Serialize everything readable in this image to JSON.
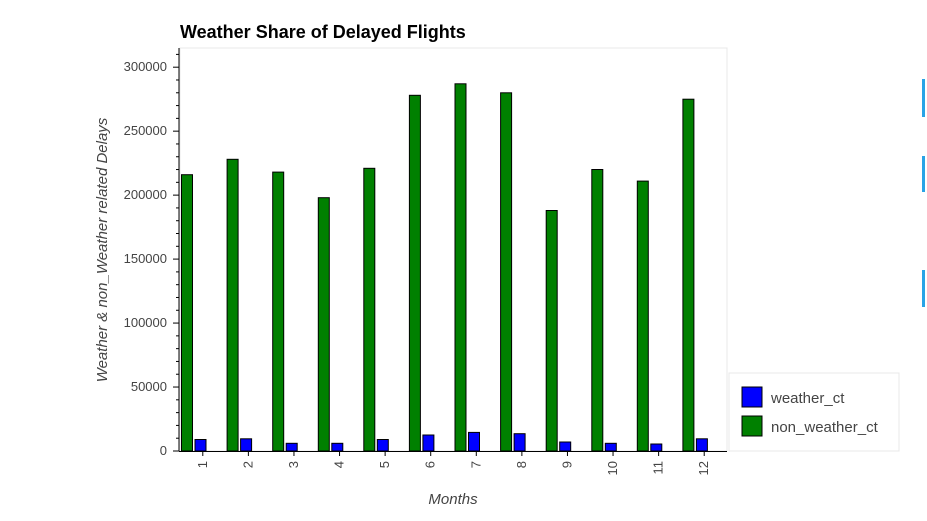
{
  "colors": {
    "weather": "#0000ff",
    "non_weather": "#008000",
    "bar_stroke": "#000000",
    "edge_marks": "#29a3e6"
  },
  "chart_data": {
    "type": "bar",
    "title": "Weather Share of Delayed Flights",
    "xlabel": "Months",
    "ylabel": "Weather & non_Weather related Delays",
    "categories": [
      "1",
      "2",
      "3",
      "4",
      "5",
      "6",
      "7",
      "8",
      "9",
      "10",
      "11",
      "12"
    ],
    "series": [
      {
        "name": "non_weather_ct",
        "color": "#008000",
        "values": [
          216000,
          228000,
          218000,
          198000,
          221000,
          278000,
          287000,
          280000,
          188000,
          220000,
          211000,
          275000
        ]
      },
      {
        "name": "weather_ct",
        "color": "#0000ff",
        "values": [
          9000,
          9500,
          6000,
          6000,
          9000,
          12500,
          14500,
          13500,
          7000,
          6000,
          5500,
          9500
        ]
      }
    ],
    "ylim": [
      0,
      315000
    ],
    "yticks": [
      "0",
      "50000",
      "100000",
      "150000",
      "200000",
      "250000",
      "300000"
    ],
    "legend": {
      "position": "bottom-right outside",
      "entries": [
        "weather_ct",
        "non_weather_ct"
      ]
    },
    "grid": false
  }
}
